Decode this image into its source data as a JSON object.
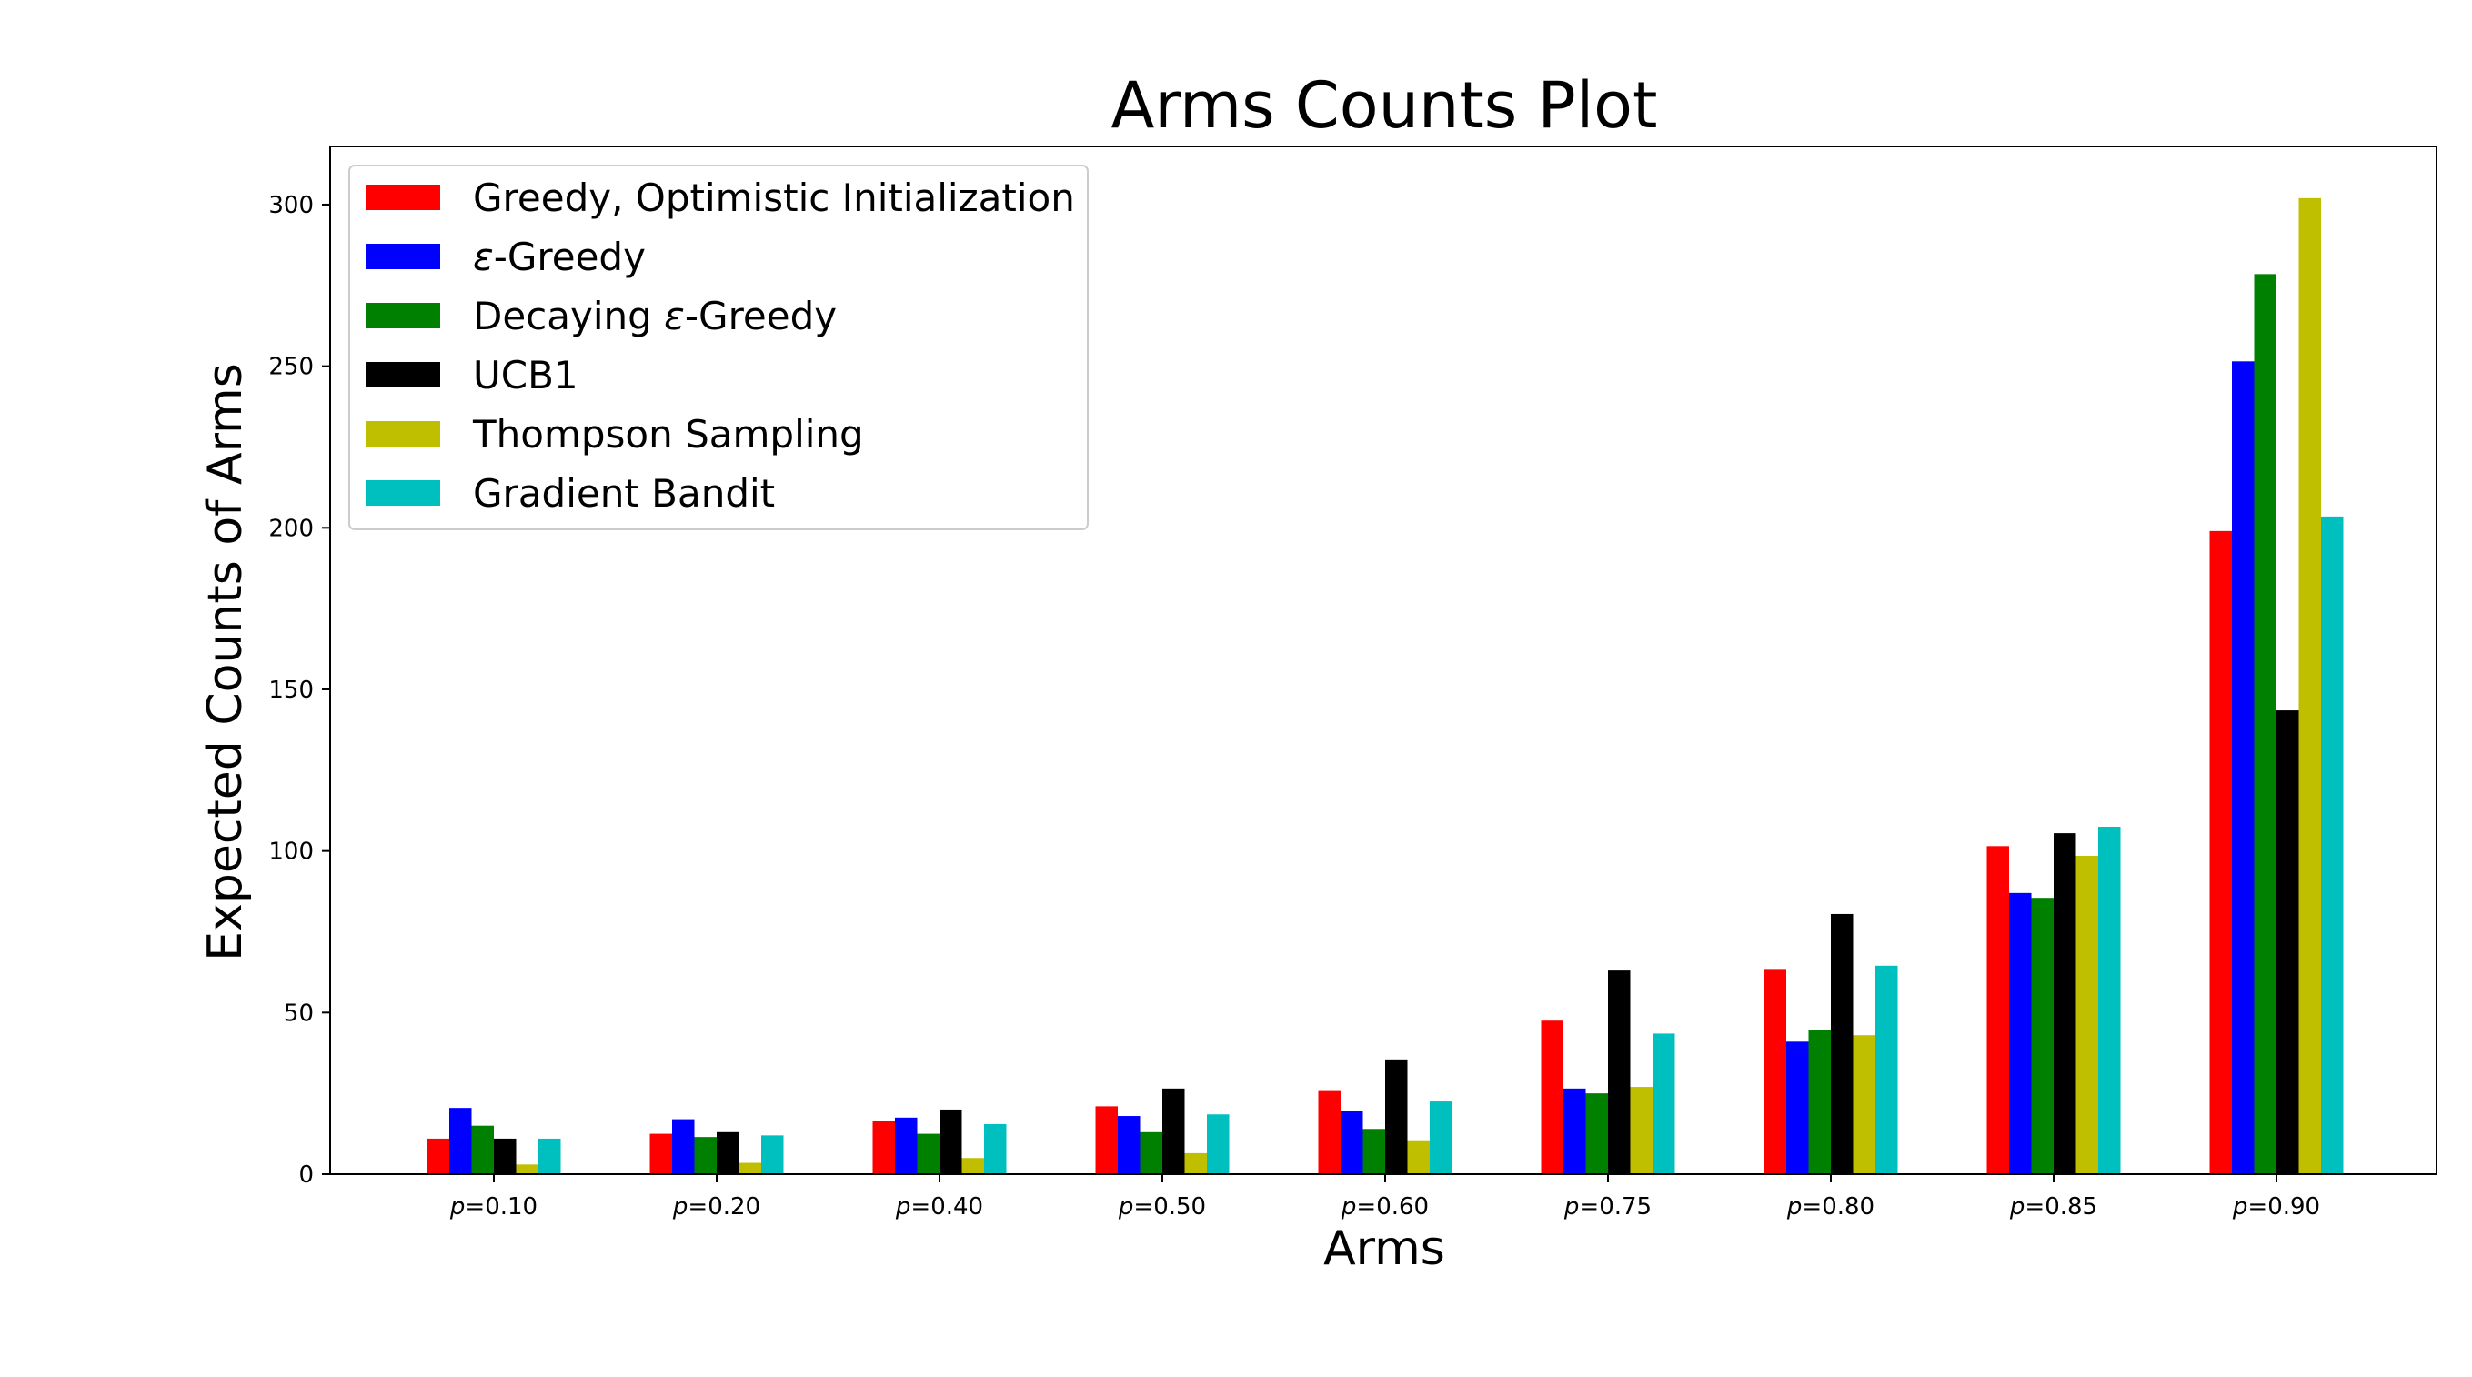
{
  "chart_data": {
    "type": "bar",
    "title": "Arms Counts Plot",
    "xlabel": "Arms",
    "ylabel": "Expected Counts of Arms",
    "ylim": [
      0,
      318
    ],
    "yticks": [
      0,
      50,
      100,
      150,
      200,
      250,
      300
    ],
    "grid": false,
    "legend_position": "top-left",
    "categories": [
      {
        "var": "p",
        "rest": "=0.10"
      },
      {
        "var": "p",
        "rest": "=0.20"
      },
      {
        "var": "p",
        "rest": "=0.40"
      },
      {
        "var": "p",
        "rest": "=0.50"
      },
      {
        "var": "p",
        "rest": "=0.60"
      },
      {
        "var": "p",
        "rest": "=0.75"
      },
      {
        "var": "p",
        "rest": "=0.80"
      },
      {
        "var": "p",
        "rest": "=0.85"
      },
      {
        "var": "p",
        "rest": "=0.90"
      }
    ],
    "series": [
      {
        "name": {
          "pre": "",
          "sym": "",
          "post": "Greedy, Optimistic Initialization"
        },
        "color": "#ff0000",
        "values": [
          11,
          12.5,
          16.5,
          21,
          26,
          47.5,
          63.5,
          101.5,
          199
        ]
      },
      {
        "name": {
          "pre": "",
          "sym": "ε",
          "post": "-Greedy"
        },
        "color": "#0000ff",
        "values": [
          20.5,
          17,
          17.5,
          18,
          19.5,
          26.5,
          41,
          87,
          251.5
        ]
      },
      {
        "name": {
          "pre": "Decaying ",
          "sym": "ε",
          "post": "-Greedy"
        },
        "color": "#008000",
        "values": [
          15,
          11.5,
          12.5,
          13,
          14,
          25,
          44.5,
          85.5,
          278.5
        ]
      },
      {
        "name": {
          "pre": "",
          "sym": "",
          "post": "UCB1"
        },
        "color": "#000000",
        "values": [
          11,
          13,
          20,
          26.5,
          35.5,
          63,
          80.5,
          105.5,
          143.5
        ]
      },
      {
        "name": {
          "pre": "",
          "sym": "",
          "post": "Thompson Sampling"
        },
        "color": "#bfbf00",
        "values": [
          3,
          3.5,
          5,
          6.5,
          10.5,
          27,
          43,
          98.5,
          302
        ]
      },
      {
        "name": {
          "pre": "",
          "sym": "",
          "post": "Gradient Bandit"
        },
        "color": "#00bfbf",
        "values": [
          11,
          12,
          15.5,
          18.5,
          22.5,
          43.5,
          64.5,
          107.5,
          203.5
        ]
      }
    ]
  }
}
